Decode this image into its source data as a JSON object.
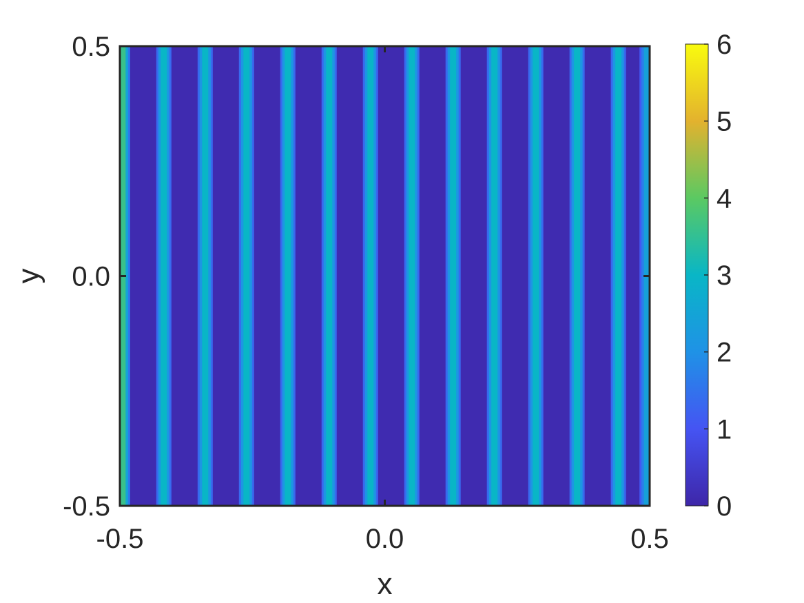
{
  "chart_data": {
    "type": "heatmap",
    "xlabel": "x",
    "ylabel": "y",
    "xlim": [
      -0.5,
      0.5
    ],
    "ylim": [
      -0.5,
      0.5
    ],
    "x_ticks": [
      -0.5,
      0.0,
      0.5
    ],
    "x_tick_labels": [
      "-0.5",
      "0.0",
      "0.5"
    ],
    "y_ticks": [
      -0.5,
      0.0,
      0.5
    ],
    "y_tick_labels": [
      "-0.5",
      "0.0",
      "0.5"
    ],
    "grid": false,
    "colormap": "parula",
    "colorbar": {
      "position": "right",
      "range": [
        0,
        6
      ],
      "ticks": [
        0,
        1,
        2,
        3,
        4,
        5,
        6
      ],
      "tick_labels": [
        "0",
        "1",
        "2",
        "3",
        "4",
        "5",
        "6"
      ]
    },
    "background_value": 0.1,
    "stripes": [
      {
        "x": -0.495,
        "peak": 3.6
      },
      {
        "x": -0.417,
        "peak": 3.0
      },
      {
        "x": -0.339,
        "peak": 3.0
      },
      {
        "x": -0.261,
        "peak": 3.0
      },
      {
        "x": -0.183,
        "peak": 3.0
      },
      {
        "x": -0.105,
        "peak": 3.0
      },
      {
        "x": -0.027,
        "peak": 3.0
      },
      {
        "x": 0.051,
        "peak": 3.0
      },
      {
        "x": 0.129,
        "peak": 3.0
      },
      {
        "x": 0.207,
        "peak": 3.0
      },
      {
        "x": 0.285,
        "peak": 3.0
      },
      {
        "x": 0.363,
        "peak": 3.0
      },
      {
        "x": 0.441,
        "peak": 3.0
      },
      {
        "x": 0.495,
        "peak": 2.4
      }
    ]
  }
}
